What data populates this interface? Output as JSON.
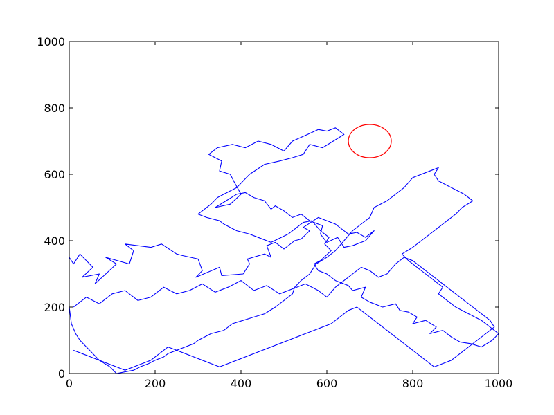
{
  "chart_data": {
    "type": "line",
    "title": "",
    "xlabel": "",
    "ylabel": "",
    "xlim": [
      0,
      1000
    ],
    "ylim": [
      0,
      1000
    ],
    "x_ticks": [
      0,
      200,
      400,
      600,
      800,
      1000
    ],
    "y_ticks": [
      0,
      200,
      400,
      600,
      800,
      1000
    ],
    "x_tick_labels": [
      "0",
      "200",
      "400",
      "600",
      "800",
      "1000"
    ],
    "y_tick_labels": [
      "0",
      "200",
      "400",
      "600",
      "800",
      "1000"
    ],
    "grid": false,
    "series": [
      {
        "color": "#0000ff",
        "style": "line",
        "x": [
          0,
          10,
          25,
          55,
          30,
          70,
          60,
          110,
          85,
          140,
          150,
          130,
          190,
          215,
          250,
          265,
          300,
          310,
          295,
          350,
          355,
          405,
          420,
          415,
          455,
          470,
          460,
          480,
          500,
          525,
          540,
          560,
          545,
          580,
          620,
          650,
          670,
          690,
          710,
          690,
          660,
          640,
          625,
          600,
          585,
          590,
          560,
          540,
          520,
          500,
          480,
          470,
          455,
          430,
          410,
          390,
          365,
          340,
          375,
          400,
          385,
          375,
          350,
          355,
          325,
          345,
          380,
          410,
          440,
          470,
          500,
          520,
          555,
          580,
          600,
          620,
          640,
          590,
          560,
          545,
          520,
          490,
          455,
          420,
          390,
          360,
          345,
          330,
          300,
          320,
          350,
          360,
          390,
          420,
          440,
          470,
          510,
          530,
          545,
          565,
          585,
          605,
          595,
          610,
          585,
          570,
          580,
          600,
          620,
          650,
          660,
          690,
          680,
          700,
          730,
          760,
          770,
          790,
          810,
          800,
          830,
          855,
          840,
          870,
          890,
          910,
          935,
          960,
          985,
          1000,
          980,
          960,
          930,
          900,
          880,
          860,
          870,
          850,
          830,
          810,
          790,
          775,
          800,
          820,
          840,
          860,
          880,
          900,
          915,
          940,
          920,
          890,
          860,
          850,
          860,
          840,
          800,
          780,
          760,
          740,
          710,
          700,
          680,
          660,
          640,
          620,
          600,
          575,
          560,
          540,
          525,
          520,
          500,
          480,
          455,
          430,
          405,
          380,
          360,
          330,
          300,
          290,
          270,
          250,
          230,
          220,
          200,
          185,
          165,
          150,
          130,
          110,
          95,
          70,
          55,
          40,
          25,
          15,
          5,
          0
        ],
        "y": [
          350,
          330,
          360,
          320,
          290,
          300,
          270,
          330,
          350,
          330,
          370,
          390,
          380,
          390,
          360,
          355,
          345,
          310,
          290,
          320,
          295,
          300,
          330,
          345,
          360,
          350,
          385,
          395,
          375,
          400,
          405,
          430,
          440,
          470,
          450,
          420,
          425,
          410,
          430,
          400,
          385,
          380,
          410,
          395,
          420,
          445,
          460,
          480,
          470,
          490,
          505,
          495,
          520,
          530,
          545,
          540,
          520,
          500,
          510,
          540,
          575,
          600,
          610,
          640,
          660,
          680,
          690,
          680,
          700,
          690,
          670,
          700,
          720,
          735,
          730,
          740,
          720,
          680,
          690,
          660,
          650,
          640,
          630,
          600,
          560,
          540,
          530,
          510,
          480,
          470,
          460,
          450,
          430,
          420,
          410,
          395,
          420,
          440,
          455,
          460,
          430,
          410,
          390,
          370,
          340,
          330,
          310,
          300,
          280,
          265,
          250,
          260,
          230,
          215,
          200,
          210,
          190,
          185,
          170,
          150,
          160,
          140,
          120,
          130,
          110,
          95,
          90,
          80,
          100,
          120,
          140,
          160,
          180,
          200,
          220,
          240,
          260,
          280,
          300,
          320,
          340,
          360,
          380,
          400,
          420,
          440,
          460,
          480,
          500,
          520,
          540,
          560,
          580,
          600,
          620,
          610,
          590,
          560,
          540,
          520,
          500,
          470,
          450,
          430,
          400,
          370,
          350,
          330,
          300,
          280,
          260,
          240,
          220,
          200,
          180,
          170,
          160,
          150,
          130,
          120,
          100,
          90,
          80,
          70,
          60,
          50,
          40,
          30,
          20,
          10,
          5,
          0,
          20,
          40,
          60,
          80,
          100,
          120,
          150,
          200
        ]
      },
      {
        "color": "#0000ff",
        "style": "line",
        "x": [
          10,
          40,
          70,
          100,
          130,
          160,
          190,
          220,
          250,
          280,
          310,
          340,
          370,
          400,
          430,
          460,
          490,
          520,
          550,
          580,
          600,
          620,
          640,
          660,
          680,
          700,
          720,
          740,
          760,
          780,
          800,
          820,
          840,
          860,
          880,
          900,
          920,
          940,
          960,
          980,
          990,
          970,
          950,
          930,
          910,
          890,
          870,
          850,
          830,
          810,
          790,
          770,
          750,
          730,
          710,
          690,
          670,
          650,
          630,
          610,
          590,
          570,
          550,
          530,
          510,
          490,
          470,
          450,
          430,
          410,
          390,
          370,
          350,
          330,
          310,
          290,
          270,
          250,
          230,
          210,
          190,
          170,
          150,
          130,
          110,
          90,
          70,
          50,
          30,
          10
        ],
        "y": [
          200,
          230,
          210,
          240,
          250,
          220,
          230,
          260,
          240,
          250,
          270,
          245,
          260,
          280,
          250,
          265,
          240,
          255,
          270,
          250,
          230,
          260,
          280,
          300,
          320,
          310,
          290,
          300,
          330,
          350,
          340,
          320,
          300,
          280,
          260,
          240,
          220,
          200,
          180,
          160,
          140,
          120,
          100,
          80,
          60,
          40,
          30,
          20,
          40,
          60,
          80,
          100,
          120,
          140,
          160,
          180,
          200,
          190,
          170,
          150,
          140,
          130,
          120,
          110,
          100,
          90,
          80,
          70,
          60,
          50,
          40,
          30,
          20,
          30,
          40,
          50,
          60,
          70,
          80,
          60,
          40,
          30,
          20,
          10,
          20,
          30,
          40,
          50,
          60,
          70
        ]
      },
      {
        "color": "#ff0000",
        "style": "circle",
        "center": [
          700,
          700
        ],
        "rx": 50,
        "ry": 50
      }
    ]
  }
}
